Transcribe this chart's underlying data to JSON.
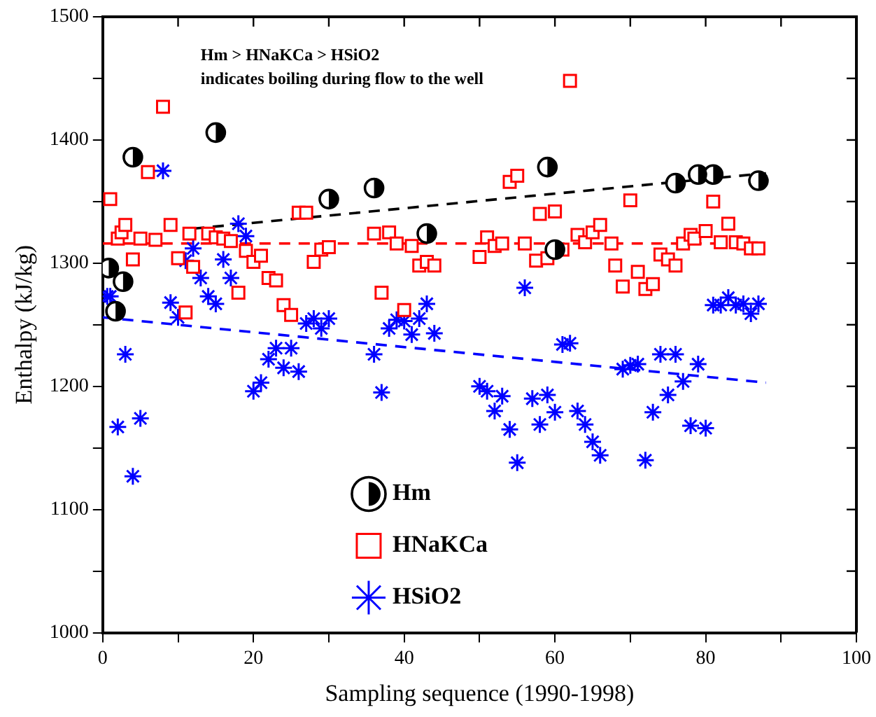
{
  "chart_data": {
    "type": "scatter",
    "xlabel": "Sampling sequence (1990-1998)",
    "ylabel": "Enthalpy (kJ/kg)",
    "annotations": [
      "Hm > HNaKCa > HSiO2",
      "indicates boiling during flow to the well"
    ],
    "xlim": [
      0,
      100
    ],
    "xticks": [
      0,
      {
        "value": 10,
        "label": null
      },
      20,
      {
        "value": 30,
        "label": null
      },
      40,
      {
        "value": 50,
        "label": null
      },
      60,
      {
        "value": 70,
        "label": null
      },
      80,
      {
        "value": 90,
        "label": null
      },
      100
    ],
    "ylim": [
      1000,
      1500
    ],
    "yticks": [
      1000,
      {
        "value": 1050,
        "label": null
      },
      1100,
      {
        "value": 1150,
        "label": null
      },
      1200,
      {
        "value": 1250,
        "label": null
      },
      1300,
      {
        "value": 1350,
        "label": null
      },
      1400,
      {
        "value": 1450,
        "label": null
      },
      1500
    ],
    "grid": false,
    "legend": "bottom",
    "series": [
      {
        "name": "Hm",
        "marker": "circle",
        "color": "#000000",
        "x": [
          0.8,
          1.7,
          2.7,
          4,
          15,
          30,
          36,
          43,
          59,
          60,
          76,
          79,
          81,
          87
        ],
        "values": [
          1296,
          1261,
          1285,
          1386,
          1406,
          1352,
          1361,
          1324,
          1378,
          1311,
          1365,
          1372,
          1372,
          1367
        ]
      },
      {
        "name": "HNaKCa",
        "marker": "square",
        "color": "#ff0000",
        "x": [
          1,
          2,
          2.5,
          3,
          4,
          5,
          6,
          7,
          8,
          9,
          10,
          11,
          11.5,
          12,
          14,
          15,
          16,
          17,
          18,
          19,
          20,
          21,
          22,
          23,
          24,
          25,
          26,
          27,
          28,
          29,
          30,
          36,
          37,
          38,
          39,
          40,
          41,
          42,
          43,
          44,
          50,
          51,
          52,
          53,
          54,
          55,
          56,
          57.5,
          58,
          59,
          60,
          61,
          62,
          63,
          64,
          65,
          66,
          67.5,
          68,
          69,
          70,
          71,
          72,
          73,
          74,
          75,
          76,
          77,
          78,
          78.5,
          80,
          81,
          82,
          83,
          84,
          85,
          86,
          87
        ],
        "values": [
          1352,
          1320,
          1325,
          1331,
          1303,
          1320,
          1374,
          1319,
          1427,
          1331,
          1304,
          1260,
          1324,
          1297,
          1324,
          1321,
          1320,
          1318,
          1276,
          1310,
          1301,
          1306,
          1288,
          1286,
          1266,
          1258,
          1341,
          1341,
          1301,
          1311,
          1313,
          1324,
          1276,
          1325,
          1316,
          1262,
          1314,
          1298,
          1301,
          1298,
          1305,
          1321,
          1314,
          1316,
          1366,
          1371,
          1316,
          1302,
          1340,
          1304,
          1342,
          1311,
          1448,
          1323,
          1317,
          1325,
          1331,
          1316,
          1298,
          1281,
          1351,
          1293,
          1279,
          1283,
          1307,
          1303,
          1298,
          1316,
          1323,
          1320,
          1326,
          1350,
          1317,
          1332,
          1317,
          1316,
          1312,
          1312
        ]
      },
      {
        "name": "HSiO2",
        "marker": "cross",
        "color": "#0000ff",
        "x": [
          0.6,
          1,
          2,
          3,
          4,
          5,
          8,
          9,
          10,
          11,
          12,
          13,
          14,
          15,
          16,
          17,
          18,
          19,
          20,
          21,
          22,
          23,
          24,
          25,
          26,
          27,
          28,
          29,
          30,
          36,
          37,
          38,
          39,
          40,
          41,
          42,
          43,
          44,
          50,
          51,
          52,
          53,
          54,
          55,
          56,
          57,
          58,
          59,
          60,
          61,
          62,
          63,
          64,
          65,
          66,
          69,
          70,
          71,
          72,
          73,
          74,
          75,
          76,
          77,
          78,
          79,
          80,
          81,
          82,
          83,
          84,
          85,
          86,
          87
        ],
        "values": [
          1273,
          1273,
          1167,
          1226,
          1127,
          1174,
          1375,
          1268,
          1256,
          1302,
          1312,
          1288,
          1273,
          1267,
          1303,
          1288,
          1332,
          1322,
          1196,
          1203,
          1222,
          1231,
          1215,
          1231,
          1212,
          1251,
          1255,
          1247,
          1255,
          1226,
          1195,
          1247,
          1254,
          1253,
          1242,
          1255,
          1267,
          1243,
          1200,
          1196,
          1180,
          1192,
          1165,
          1138,
          1280,
          1190,
          1169,
          1193,
          1179,
          1234,
          1235,
          1180,
          1169,
          1155,
          1144,
          1214,
          1217,
          1218,
          1140,
          1179,
          1226,
          1193,
          1226,
          1204,
          1168,
          1218,
          1166,
          1266,
          1266,
          1272,
          1266,
          1267,
          1259,
          1267
        ]
      },
      {
        "type": "line",
        "line_style": "dashed",
        "marker": "none",
        "color": "#000000",
        "x": [
          12,
          88
        ],
        "values": [
          1328,
          1373
        ]
      },
      {
        "type": "line",
        "line_style": "dashed",
        "marker": "none",
        "color": "#ff0000",
        "x": [
          0,
          88
        ],
        "values": [
          1316,
          1316
        ]
      },
      {
        "type": "line",
        "line_style": "dashed",
        "marker": "none",
        "color": "#0000ff",
        "x": [
          0,
          88
        ],
        "values": [
          1256,
          1203
        ]
      }
    ]
  }
}
